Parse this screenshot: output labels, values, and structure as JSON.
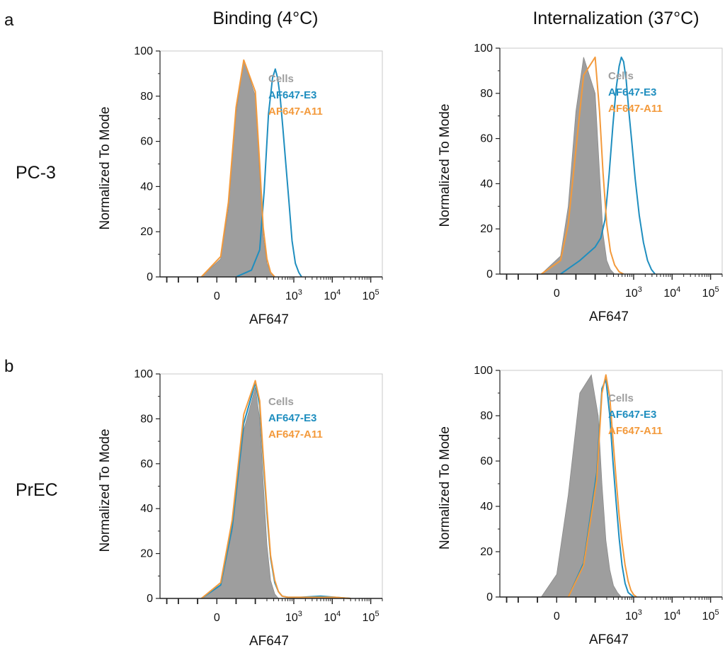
{
  "figure": {
    "panels": [
      {
        "letter": "a",
        "row_label": "PC-3"
      },
      {
        "letter": "b",
        "row_label": "PrEC"
      }
    ],
    "columns": [
      "Binding (4°C)",
      "Internalization (37°C)"
    ]
  },
  "colors": {
    "Cells": "#9e9e9e",
    "AF647-E3": "#1f8ebf",
    "AF647-A11": "#f39a3c"
  },
  "chart_data": [
    {
      "type": "area",
      "panel": "a",
      "row": "PC-3",
      "column": "Binding (4°C)",
      "xlabel": "AF647",
      "ylabel": "Normalized To Mode",
      "x_scale": "biexponential",
      "ylim": [
        0,
        100
      ],
      "xlim": [
        -300,
        200000
      ],
      "x_ticks": [
        "0",
        "10^3",
        "10^4",
        "10^5"
      ],
      "y_ticks": [
        "0",
        "20",
        "40",
        "60",
        "80",
        "100"
      ],
      "legend": [
        "Cells",
        "AF647-E3",
        "AF647-A11"
      ],
      "legend_position": "top-right",
      "series": [
        {
          "name": "Cells",
          "style": "filled",
          "x": [
            -40,
            10,
            30,
            50,
            70,
            100,
            130,
            160,
            200,
            250,
            320
          ],
          "y": [
            0,
            8,
            30,
            72,
            96,
            80,
            45,
            18,
            6,
            2,
            0
          ]
        },
        {
          "name": "AF647-E3",
          "style": "line",
          "x": [
            50,
            90,
            130,
            170,
            220,
            280,
            330,
            380,
            440,
            520,
            620,
            750,
            900,
            1100,
            1350,
            1600
          ],
          "y": [
            0,
            3,
            12,
            38,
            72,
            88,
            92,
            88,
            80,
            66,
            50,
            33,
            16,
            6,
            2,
            0
          ]
        },
        {
          "name": "AF647-A11",
          "style": "line",
          "x": [
            -40,
            10,
            30,
            50,
            70,
            100,
            130,
            160,
            200,
            250,
            320
          ],
          "y": [
            0,
            9,
            33,
            75,
            96,
            82,
            50,
            22,
            8,
            2,
            0
          ]
        }
      ]
    },
    {
      "type": "area",
      "panel": "a",
      "row": "PC-3",
      "column": "Internalization (37°C)",
      "xlabel": "AF647",
      "ylabel": "Normalized To Mode",
      "x_scale": "biexponential",
      "ylim": [
        0,
        100
      ],
      "xlim": [
        -300,
        200000
      ],
      "x_ticks": [
        "0",
        "10^3",
        "10^4",
        "10^5"
      ],
      "y_ticks": [
        "0",
        "20",
        "40",
        "60",
        "80",
        "100"
      ],
      "legend": [
        "Cells",
        "AF647-E3",
        "AF647-A11"
      ],
      "legend_position": "top-right",
      "series": [
        {
          "name": "Cells",
          "style": "filled",
          "x": [
            -40,
            10,
            30,
            50,
            70,
            100,
            130,
            160,
            200,
            250,
            320
          ],
          "y": [
            0,
            8,
            30,
            72,
            96,
            80,
            45,
            18,
            6,
            2,
            0
          ]
        },
        {
          "name": "AF647-E3",
          "style": "line",
          "x": [
            10,
            60,
            100,
            140,
            180,
            230,
            290,
            350,
            420,
            480,
            550,
            640,
            750,
            900,
            1100,
            1400,
            1800,
            2300,
            2900,
            3600
          ],
          "y": [
            0,
            6,
            12,
            16,
            24,
            44,
            66,
            82,
            92,
            96,
            94,
            86,
            72,
            58,
            42,
            26,
            14,
            6,
            2,
            0
          ]
        },
        {
          "name": "AF647-A11",
          "style": "line",
          "x": [
            -40,
            10,
            30,
            50,
            70,
            100,
            130,
            160,
            200,
            250,
            320,
            420,
            550
          ],
          "y": [
            0,
            6,
            22,
            55,
            88,
            96,
            72,
            45,
            22,
            10,
            4,
            1,
            0
          ]
        }
      ]
    },
    {
      "type": "area",
      "panel": "b",
      "row": "PrEC",
      "column": "Binding (4°C)",
      "xlabel": "AF647",
      "ylabel": "Normalized To Mode",
      "x_scale": "biexponential",
      "ylim": [
        0,
        100
      ],
      "xlim": [
        -300,
        200000
      ],
      "x_ticks": [
        "0",
        "10^3",
        "10^4",
        "10^5"
      ],
      "y_ticks": [
        "0",
        "20",
        "40",
        "60",
        "80",
        "100"
      ],
      "legend": [
        "Cells",
        "AF647-E3",
        "AF647-A11"
      ],
      "legend_position": "top-right",
      "series": [
        {
          "name": "Cells",
          "style": "filled",
          "x": [
            -40,
            10,
            40,
            70,
            100,
            130,
            160,
            200,
            250,
            320,
            400
          ],
          "y": [
            0,
            6,
            30,
            75,
            94,
            80,
            52,
            24,
            8,
            2,
            0
          ]
        },
        {
          "name": "AF647-E3",
          "style": "line",
          "x": [
            -40,
            10,
            40,
            70,
            100,
            130,
            160,
            200,
            250,
            320,
            400,
            500,
            700,
            1500,
            5000,
            12000,
            30000
          ],
          "y": [
            0,
            6,
            32,
            78,
            96,
            86,
            62,
            38,
            18,
            7,
            3,
            1,
            0.5,
            0.5,
            1,
            0.5,
            0
          ]
        },
        {
          "name": "AF647-A11",
          "style": "line",
          "x": [
            -40,
            10,
            40,
            70,
            100,
            130,
            160,
            200,
            250,
            320,
            400,
            500,
            700,
            1500,
            5000,
            12000,
            30000
          ],
          "y": [
            0,
            7,
            35,
            82,
            97,
            88,
            64,
            40,
            19,
            8,
            3,
            1,
            0.5,
            0.5,
            0.5,
            0.5,
            0
          ]
        }
      ]
    },
    {
      "type": "area",
      "panel": "b",
      "row": "PrEC",
      "column": "Internalization (37°C)",
      "xlabel": "AF647",
      "ylabel": "Normalized To Mode",
      "x_scale": "biexponential",
      "ylim": [
        0,
        100
      ],
      "xlim": [
        -300,
        200000
      ],
      "x_ticks": [
        "0",
        "10^3",
        "10^4",
        "10^5"
      ],
      "y_ticks": [
        "0",
        "20",
        "40",
        "60",
        "80",
        "100"
      ],
      "legend": [
        "Cells",
        "AF647-E3",
        "AF647-A11"
      ],
      "legend_position": "top-right",
      "series": [
        {
          "name": "Cells",
          "style": "filled",
          "x": [
            -40,
            0,
            30,
            60,
            90,
            120,
            150,
            190,
            240,
            300,
            380,
            480
          ],
          "y": [
            0,
            10,
            45,
            90,
            98,
            80,
            50,
            25,
            12,
            5,
            2,
            0
          ]
        },
        {
          "name": "AF647-E3",
          "style": "line",
          "x": [
            30,
            70,
            110,
            150,
            190,
            240,
            290,
            350,
            420,
            500,
            600,
            720,
            850,
            1000
          ],
          "y": [
            0,
            15,
            55,
            92,
            96,
            80,
            60,
            42,
            26,
            14,
            6,
            2,
            1,
            0
          ]
        },
        {
          "name": "AF647-A11",
          "style": "line",
          "x": [
            30,
            70,
            110,
            150,
            190,
            240,
            290,
            350,
            420,
            500,
            600,
            720,
            850,
            1000,
            1200
          ],
          "y": [
            0,
            14,
            52,
            90,
            98,
            88,
            70,
            52,
            36,
            24,
            14,
            7,
            3,
            1,
            0
          ]
        }
      ]
    }
  ]
}
